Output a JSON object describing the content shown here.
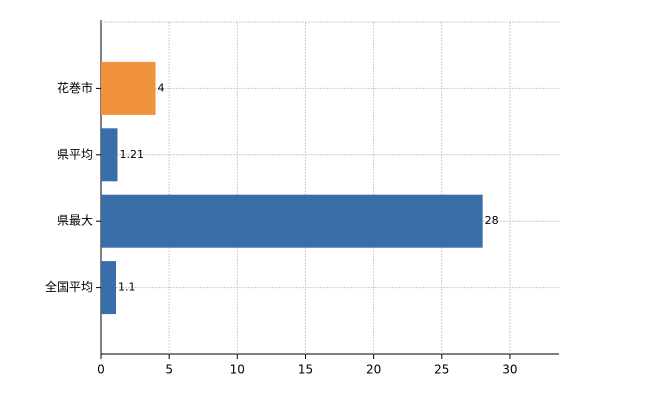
{
  "chart_data": {
    "type": "hbar",
    "categories": [
      "花巻市",
      "県平均",
      "県最大",
      "全国平均"
    ],
    "values": [
      4,
      1.21,
      28,
      1.1
    ],
    "colors": [
      "#f0923a",
      "#3a6ea8",
      "#3a6ea8",
      "#3a6ea8"
    ],
    "xlim": [
      0,
      33.6
    ],
    "xticks": [
      0,
      5,
      10,
      15,
      20,
      25,
      30
    ],
    "grid": true
  }
}
